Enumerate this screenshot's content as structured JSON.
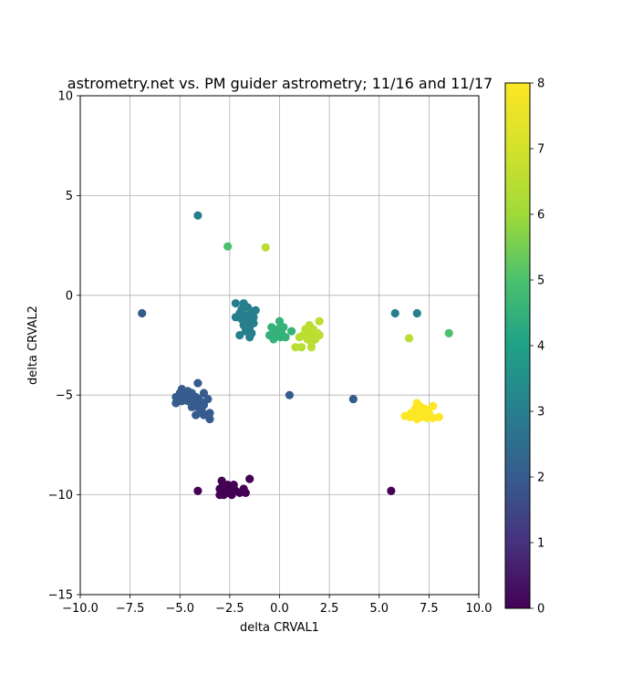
{
  "chart_data": {
    "type": "scatter",
    "title": "astrometry.net vs. PM guider astrometry; 11/16 and 11/17",
    "xlabel": "delta CRVAL1",
    "ylabel": "delta CRVAL2",
    "xlim": [
      -10,
      10
    ],
    "ylim": [
      -15,
      10
    ],
    "grid": true,
    "colormap": "viridis",
    "x_ticks": [
      {
        "value": -10,
        "label": "−10.0"
      },
      {
        "value": -7.5,
        "label": "−7.5"
      },
      {
        "value": -5,
        "label": "−5.0"
      },
      {
        "value": -2.5,
        "label": "−2.5"
      },
      {
        "value": 0,
        "label": "0.0"
      },
      {
        "value": 2.5,
        "label": "2.5"
      },
      {
        "value": 5,
        "label": "5.0"
      },
      {
        "value": 7.5,
        "label": "7.5"
      },
      {
        "value": 10,
        "label": "10.0"
      }
    ],
    "y_ticks": [
      {
        "value": 10,
        "label": "10"
      },
      {
        "value": 5,
        "label": "5"
      },
      {
        "value": 0,
        "label": "0"
      },
      {
        "value": -5,
        "label": "−5"
      },
      {
        "value": -10,
        "label": "−10"
      },
      {
        "value": -15,
        "label": "−15"
      }
    ],
    "colorbar": {
      "range": [
        0,
        8
      ],
      "ticks": [
        {
          "value": 0,
          "label": "0"
        },
        {
          "value": 1,
          "label": "1"
        },
        {
          "value": 2,
          "label": "2"
        },
        {
          "value": 3,
          "label": "3"
        },
        {
          "value": 4,
          "label": "4"
        },
        {
          "value": 5,
          "label": "5"
        },
        {
          "value": 6,
          "label": "6"
        },
        {
          "value": 7,
          "label": "7"
        },
        {
          "value": 8,
          "label": "8"
        }
      ]
    },
    "points": [
      {
        "x": -2.9,
        "y": -9.3,
        "c": 0
      },
      {
        "x": -2.6,
        "y": -9.5,
        "c": 0
      },
      {
        "x": -2.3,
        "y": -9.5,
        "c": 0
      },
      {
        "x": -3.0,
        "y": -9.7,
        "c": 0
      },
      {
        "x": -2.7,
        "y": -9.7,
        "c": 0
      },
      {
        "x": -2.5,
        "y": -9.8,
        "c": 0
      },
      {
        "x": -2.2,
        "y": -9.8,
        "c": 0
      },
      {
        "x": -3.0,
        "y": -10.0,
        "c": 0
      },
      {
        "x": -2.8,
        "y": -10.0,
        "c": 0
      },
      {
        "x": -2.4,
        "y": -10.0,
        "c": 0
      },
      {
        "x": -2.0,
        "y": -9.9,
        "c": 0
      },
      {
        "x": -1.8,
        "y": -9.7,
        "c": 0
      },
      {
        "x": -1.7,
        "y": -9.9,
        "c": 0
      },
      {
        "x": -1.5,
        "y": -9.2,
        "c": 0
      },
      {
        "x": -4.1,
        "y": -9.8,
        "c": 0
      },
      {
        "x": 5.6,
        "y": -9.8,
        "c": 0
      },
      {
        "x": -2.85,
        "y": -9.55,
        "c": 0
      },
      {
        "x": -2.55,
        "y": -9.9,
        "c": 0
      },
      {
        "x": -6.9,
        "y": -0.9,
        "c": 2
      },
      {
        "x": 0.5,
        "y": -5.0,
        "c": 2
      },
      {
        "x": 3.7,
        "y": -5.2,
        "c": 2
      },
      {
        "x": -4.1,
        "y": -4.4,
        "c": 2
      },
      {
        "x": -4.9,
        "y": -4.7,
        "c": 2
      },
      {
        "x": -5.0,
        "y": -4.9,
        "c": 2
      },
      {
        "x": -4.6,
        "y": -4.8,
        "c": 2
      },
      {
        "x": -4.4,
        "y": -4.9,
        "c": 2
      },
      {
        "x": -5.2,
        "y": -5.1,
        "c": 2
      },
      {
        "x": -4.8,
        "y": -5.1,
        "c": 2
      },
      {
        "x": -4.5,
        "y": -5.1,
        "c": 2
      },
      {
        "x": -4.2,
        "y": -5.1,
        "c": 2
      },
      {
        "x": -3.8,
        "y": -4.9,
        "c": 2
      },
      {
        "x": -3.6,
        "y": -5.2,
        "c": 2
      },
      {
        "x": -5.2,
        "y": -5.4,
        "c": 2
      },
      {
        "x": -4.9,
        "y": -5.3,
        "c": 2
      },
      {
        "x": -4.6,
        "y": -5.3,
        "c": 2
      },
      {
        "x": -4.3,
        "y": -5.4,
        "c": 2
      },
      {
        "x": -4.0,
        "y": -5.3,
        "c": 2
      },
      {
        "x": -3.8,
        "y": -5.5,
        "c": 2
      },
      {
        "x": -4.1,
        "y": -5.6,
        "c": 2
      },
      {
        "x": -4.4,
        "y": -5.6,
        "c": 2
      },
      {
        "x": -3.9,
        "y": -5.8,
        "c": 2
      },
      {
        "x": -3.5,
        "y": -5.9,
        "c": 2
      },
      {
        "x": -4.2,
        "y": -6.0,
        "c": 2
      },
      {
        "x": -3.8,
        "y": -6.0,
        "c": 2
      },
      {
        "x": -3.5,
        "y": -6.2,
        "c": 2
      },
      {
        "x": -4.05,
        "y": -5.2,
        "c": 2
      },
      {
        "x": -4.1,
        "y": 4.0,
        "c": 3
      },
      {
        "x": 5.8,
        "y": -0.9,
        "c": 3
      },
      {
        "x": 6.9,
        "y": -0.9,
        "c": 3
      },
      {
        "x": -2.2,
        "y": -0.4,
        "c": 3
      },
      {
        "x": -1.8,
        "y": -0.4,
        "c": 3
      },
      {
        "x": -1.6,
        "y": -0.6,
        "c": 3
      },
      {
        "x": -1.9,
        "y": -0.7,
        "c": 3
      },
      {
        "x": -1.2,
        "y": -0.75,
        "c": 3
      },
      {
        "x": -1.4,
        "y": -0.8,
        "c": 3
      },
      {
        "x": -2.0,
        "y": -0.9,
        "c": 3
      },
      {
        "x": -1.7,
        "y": -1.0,
        "c": 3
      },
      {
        "x": -1.5,
        "y": -1.0,
        "c": 3
      },
      {
        "x": -1.3,
        "y": -1.1,
        "c": 3
      },
      {
        "x": -2.2,
        "y": -1.1,
        "c": 3
      },
      {
        "x": -1.9,
        "y": -1.2,
        "c": 3
      },
      {
        "x": -1.6,
        "y": -1.3,
        "c": 3
      },
      {
        "x": -1.3,
        "y": -1.4,
        "c": 3
      },
      {
        "x": -1.8,
        "y": -1.5,
        "c": 3
      },
      {
        "x": -1.5,
        "y": -1.6,
        "c": 3
      },
      {
        "x": -1.7,
        "y": -1.8,
        "c": 3
      },
      {
        "x": -1.4,
        "y": -1.9,
        "c": 3
      },
      {
        "x": -2.0,
        "y": -2.0,
        "c": 3
      },
      {
        "x": -1.5,
        "y": -2.1,
        "c": 3
      },
      {
        "x": -2.6,
        "y": 2.45,
        "c": 5
      },
      {
        "x": 8.5,
        "y": -1.9,
        "c": 5
      },
      {
        "x": 0.0,
        "y": -1.3,
        "c": 4.5
      },
      {
        "x": -0.4,
        "y": -1.6,
        "c": 4.5
      },
      {
        "x": 0.2,
        "y": -1.6,
        "c": 4.5
      },
      {
        "x": -0.1,
        "y": -1.7,
        "c": 4.5
      },
      {
        "x": 0.6,
        "y": -1.8,
        "c": 4.5
      },
      {
        "x": -0.3,
        "y": -1.9,
        "c": 4.5
      },
      {
        "x": 0.1,
        "y": -1.9,
        "c": 4.5
      },
      {
        "x": -0.5,
        "y": -2.0,
        "c": 4.5
      },
      {
        "x": -0.2,
        "y": -2.0,
        "c": 4.5
      },
      {
        "x": 0.3,
        "y": -2.1,
        "c": 4.5
      },
      {
        "x": -0.3,
        "y": -2.2,
        "c": 4.5
      },
      {
        "x": 0.05,
        "y": -2.1,
        "c": 4.5
      },
      {
        "x": -0.7,
        "y": 2.4,
        "c": 6.5
      },
      {
        "x": 6.5,
        "y": -2.15,
        "c": 6.5
      },
      {
        "x": 1.5,
        "y": -1.5,
        "c": 6.5
      },
      {
        "x": 2.0,
        "y": -1.3,
        "c": 6.5
      },
      {
        "x": 1.3,
        "y": -1.7,
        "c": 6.5
      },
      {
        "x": 1.7,
        "y": -1.7,
        "c": 6.5
      },
      {
        "x": 1.5,
        "y": -1.9,
        "c": 6.5
      },
      {
        "x": 1.9,
        "y": -1.9,
        "c": 6.5
      },
      {
        "x": 1.2,
        "y": -2.0,
        "c": 6.5
      },
      {
        "x": 1.6,
        "y": -2.0,
        "c": 6.5
      },
      {
        "x": 2.0,
        "y": -2.0,
        "c": 6.5
      },
      {
        "x": 1.0,
        "y": -2.1,
        "c": 6.5
      },
      {
        "x": 1.4,
        "y": -2.2,
        "c": 6.5
      },
      {
        "x": 1.8,
        "y": -2.2,
        "c": 6.5
      },
      {
        "x": 1.6,
        "y": -2.35,
        "c": 6.5
      },
      {
        "x": 0.8,
        "y": -2.6,
        "c": 6.5
      },
      {
        "x": 1.1,
        "y": -2.6,
        "c": 6.5
      },
      {
        "x": 1.6,
        "y": -2.6,
        "c": 6.5
      },
      {
        "x": 6.9,
        "y": -5.4,
        "c": 8
      },
      {
        "x": 6.8,
        "y": -5.7,
        "c": 8
      },
      {
        "x": 7.1,
        "y": -5.6,
        "c": 8
      },
      {
        "x": 7.3,
        "y": -5.7,
        "c": 8
      },
      {
        "x": 7.7,
        "y": -5.55,
        "c": 8
      },
      {
        "x": 6.6,
        "y": -5.9,
        "c": 8
      },
      {
        "x": 6.9,
        "y": -5.9,
        "c": 8
      },
      {
        "x": 7.2,
        "y": -5.9,
        "c": 8
      },
      {
        "x": 7.5,
        "y": -5.9,
        "c": 8
      },
      {
        "x": 6.3,
        "y": -6.05,
        "c": 8
      },
      {
        "x": 6.55,
        "y": -6.1,
        "c": 8
      },
      {
        "x": 6.85,
        "y": -6.1,
        "c": 8
      },
      {
        "x": 7.1,
        "y": -6.1,
        "c": 8
      },
      {
        "x": 7.4,
        "y": -6.15,
        "c": 8
      },
      {
        "x": 7.7,
        "y": -6.15,
        "c": 8
      },
      {
        "x": 8.0,
        "y": -6.1,
        "c": 8
      },
      {
        "x": 6.9,
        "y": -6.2,
        "c": 8
      }
    ]
  }
}
